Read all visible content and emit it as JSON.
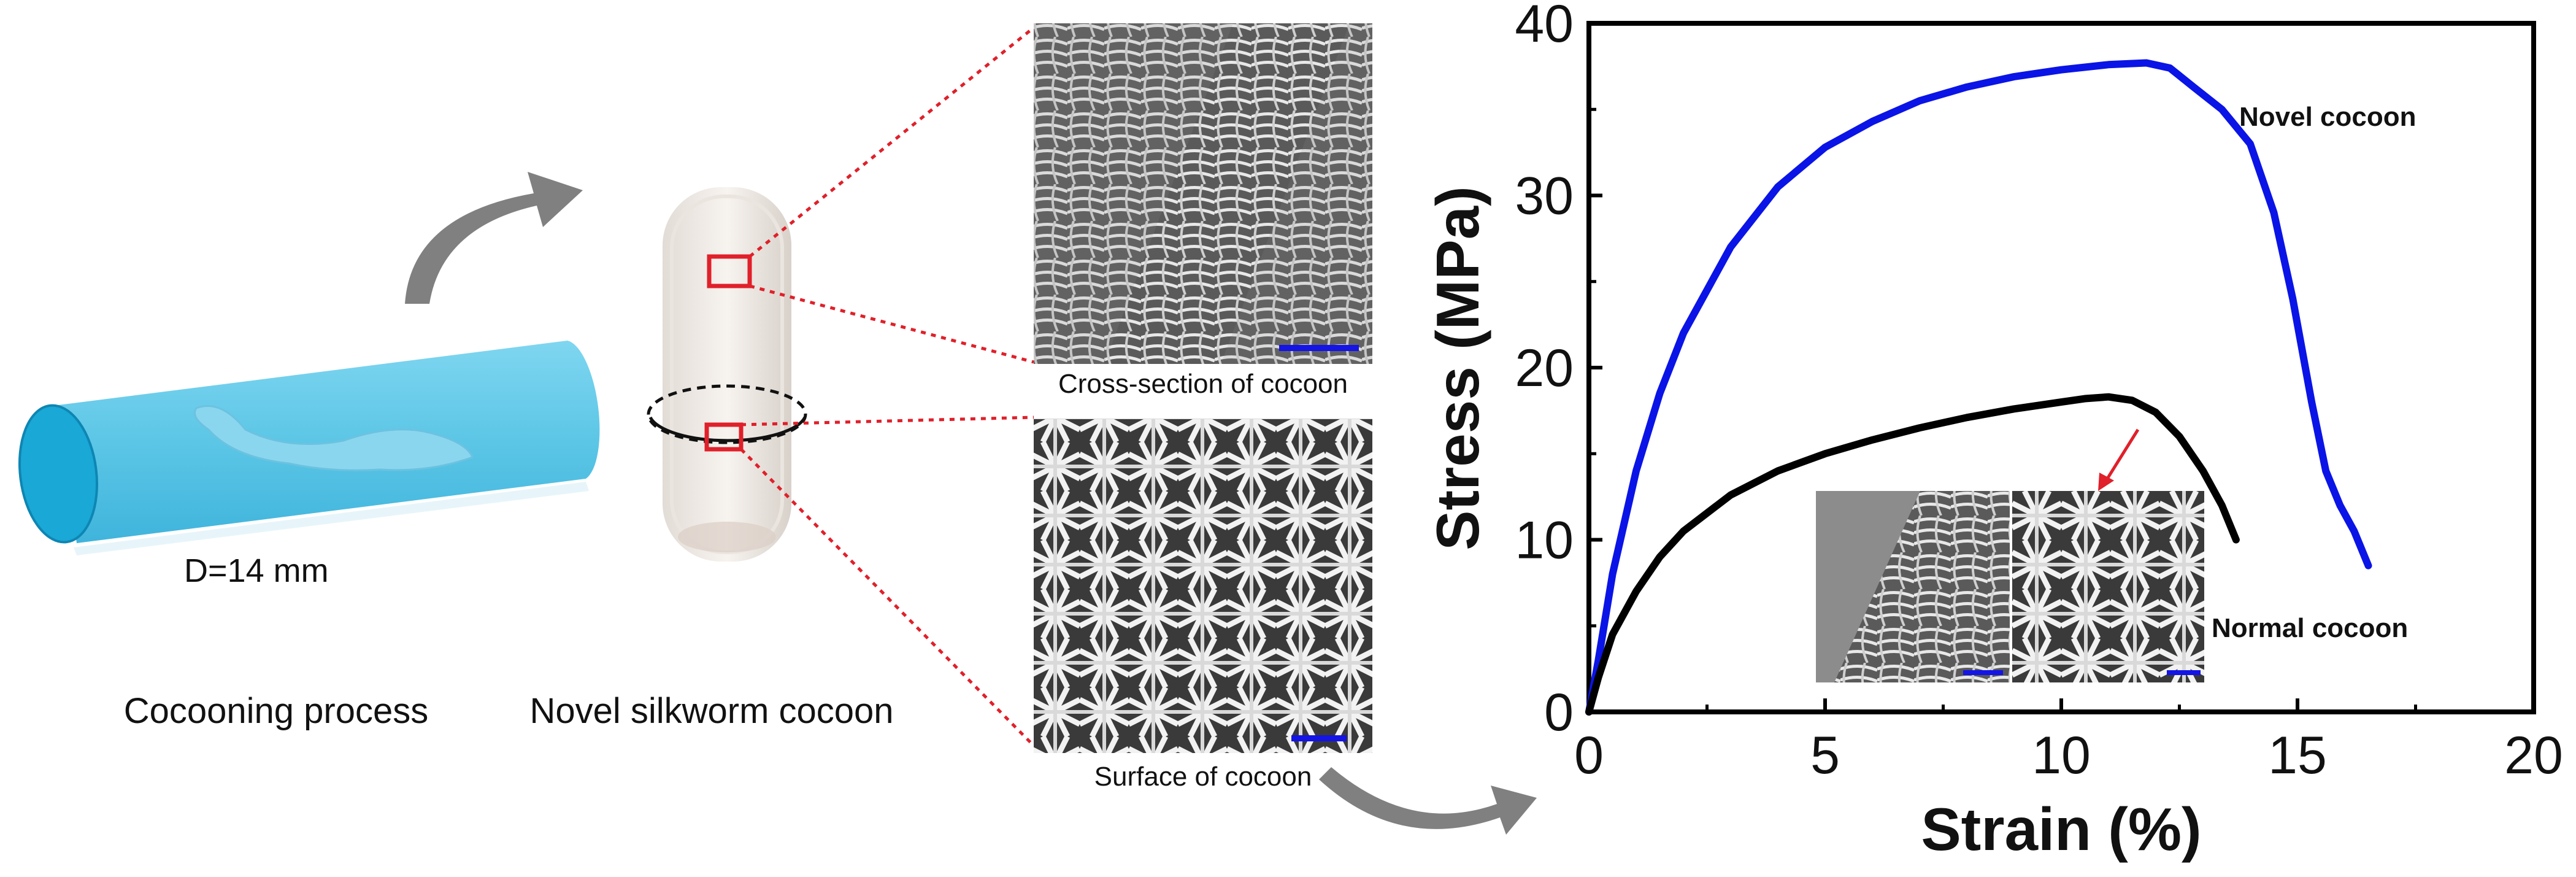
{
  "left_panel": {
    "tube_label": "D=14 mm",
    "process_caption": "Cocooning process",
    "cocoon_caption": "Novel silkworm cocoon"
  },
  "sem_panel": {
    "cross_section_caption": "Cross-section of cocoon",
    "surface_caption": "Surface of cocoon"
  },
  "colors": {
    "tube": "#5cc6e6",
    "tube_end": "#1aa8d6",
    "novel_curve": "#0a14e6",
    "normal_curve": "#000000",
    "highlight_box": "#e0202a",
    "scale_bar": "#1414e6",
    "arrow_gray": "#808080",
    "inset_arrow": "#e0202a"
  },
  "chart_data": {
    "type": "line",
    "xlabel": "Strain (%)",
    "ylabel": "Stress (MPa)",
    "xlim": [
      0,
      20
    ],
    "ylim": [
      0,
      40
    ],
    "xticks": [
      "0",
      "5",
      "10",
      "15",
      "20"
    ],
    "yticks": [
      "0",
      "10",
      "20",
      "30",
      "40"
    ],
    "grid": false,
    "series": [
      {
        "name": "Novel cocoon",
        "color": "#0a14e6",
        "x": [
          0,
          0.2,
          0.5,
          1,
          1.5,
          2,
          3,
          4,
          5,
          6,
          7,
          8,
          9,
          10,
          11,
          11.8,
          12.3,
          12.8,
          13.4,
          14.0,
          14.5,
          14.9,
          15.3,
          15.6,
          15.9,
          16.2,
          16.5
        ],
        "y": [
          0,
          3,
          8,
          14,
          18.5,
          22,
          27,
          30.5,
          32.8,
          34.3,
          35.5,
          36.3,
          36.9,
          37.3,
          37.6,
          37.7,
          37.4,
          36.3,
          35,
          33,
          29,
          24,
          18,
          14,
          12,
          10.5,
          8.5
        ]
      },
      {
        "name": "Normal cocoon",
        "color": "#000000",
        "x": [
          0,
          0.2,
          0.5,
          1,
          1.5,
          2,
          3,
          4,
          5,
          6,
          7,
          8,
          9,
          10,
          10.5,
          11,
          11.5,
          12,
          12.5,
          13,
          13.4,
          13.7
        ],
        "y": [
          0,
          2,
          4.5,
          7,
          9,
          10.5,
          12.6,
          14,
          15,
          15.8,
          16.5,
          17.1,
          17.6,
          18,
          18.2,
          18.3,
          18.1,
          17.4,
          16,
          14,
          12,
          10
        ]
      }
    ]
  }
}
